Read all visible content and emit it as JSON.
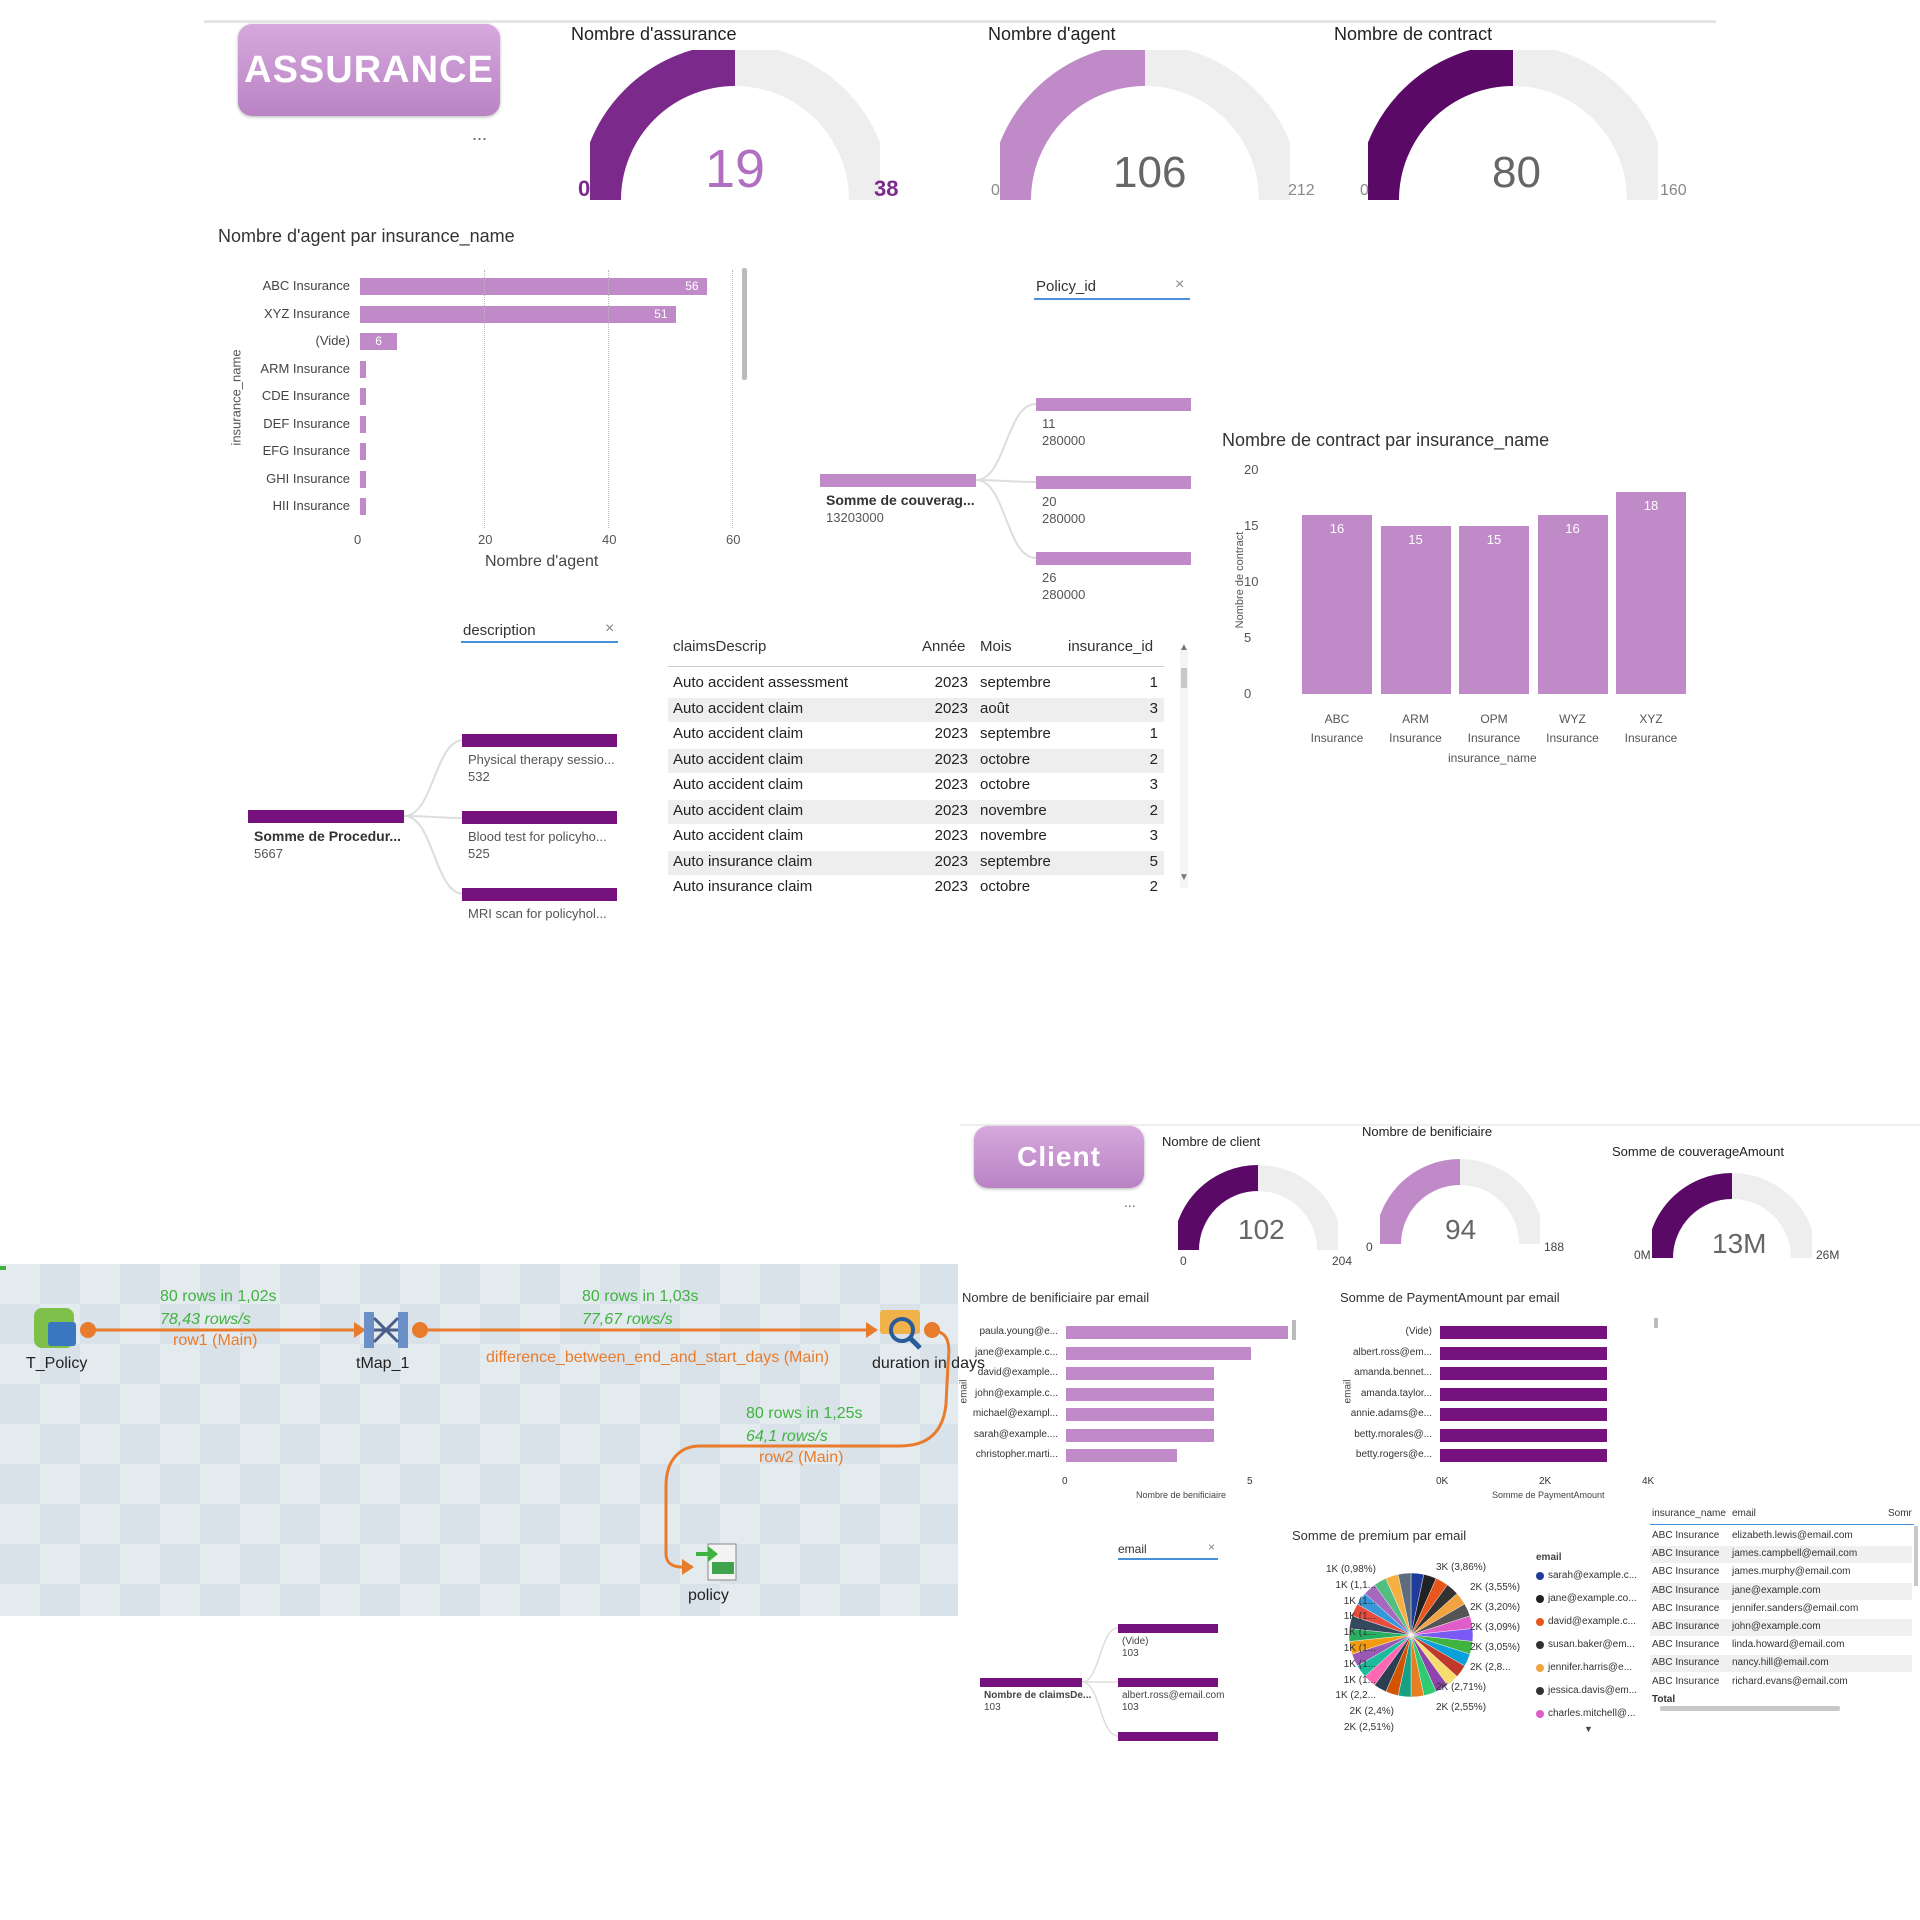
{
  "assurance": {
    "title": "ASSURANCE",
    "more": "...",
    "gauges": [
      {
        "title": "Nombre d'assurance",
        "value": 19,
        "value_label": "19",
        "min": "0",
        "max": "38"
      },
      {
        "title": "Nombre d'agent",
        "value": 106,
        "value_label": "106",
        "min": "0",
        "max": "212"
      },
      {
        "title": "Nombre de contract",
        "value": 80,
        "value_label": "80",
        "min": "0",
        "max": "160"
      }
    ],
    "agent_chart": {
      "title": "Nombre d'agent par insurance_name",
      "ylabel": "insurance_name",
      "xlabel": "Nombre d'agent",
      "ticks": [
        "0",
        "20",
        "40",
        "60"
      ],
      "categories": [
        "ABC Insurance",
        "XYZ Insurance",
        "(Vide)",
        "ARM Insurance",
        "CDE Insurance",
        "DEF Insurance",
        "EFG Insurance",
        "GHI Insurance",
        "HII Insurance"
      ],
      "values": [
        56,
        51,
        6,
        1,
        1,
        1,
        1,
        1,
        1
      ],
      "labels": [
        "56",
        "51",
        "6",
        "",
        "",
        "",
        "",
        "",
        ""
      ]
    },
    "policy_slicer": {
      "label": "Policy_id",
      "close": "×"
    },
    "coverage_tree": {
      "root_label": "Somme de couverag...",
      "root_value": "13203000",
      "nodes": [
        {
          "id": "11",
          "value": "280000"
        },
        {
          "id": "20",
          "value": "280000"
        },
        {
          "id": "26",
          "value": "280000"
        }
      ]
    },
    "contract_chart": {
      "title": "Nombre de contract par insurance_name",
      "ylabel": "Nombre de contract",
      "xlabel": "insurance_name",
      "yticks": [
        "20",
        "15",
        "10",
        "5",
        "0"
      ],
      "categories": [
        [
          "ABC",
          "Insurance"
        ],
        [
          "ARM",
          "Insurance"
        ],
        [
          "OPM",
          "Insurance"
        ],
        [
          "WYZ",
          "Insurance"
        ],
        [
          "XYZ",
          "Insurance"
        ]
      ],
      "values": [
        16,
        15,
        15,
        16,
        18
      ]
    },
    "description_slicer": {
      "label": "description",
      "close": "×"
    },
    "procedure_tree": {
      "root_label": "Somme de Procedur...",
      "root_value": "5667",
      "nodes": [
        {
          "label": "Physical therapy sessio...",
          "value": "532"
        },
        {
          "label": "Blood test for policyho...",
          "value": "525"
        },
        {
          "label": "MRI scan for policyhol...",
          "value": "518"
        }
      ]
    },
    "claims_table": {
      "headers": [
        "claimsDescrip",
        "Année",
        "Mois",
        "insurance_id"
      ],
      "rows": [
        [
          "Auto accident assessment",
          "2023",
          "septembre",
          "1"
        ],
        [
          "Auto accident claim",
          "2023",
          "août",
          "3"
        ],
        [
          "Auto accident claim",
          "2023",
          "septembre",
          "1"
        ],
        [
          "Auto accident claim",
          "2023",
          "octobre",
          "2"
        ],
        [
          "Auto accident claim",
          "2023",
          "octobre",
          "3"
        ],
        [
          "Auto accident claim",
          "2023",
          "novembre",
          "2"
        ],
        [
          "Auto accident claim",
          "2023",
          "novembre",
          "3"
        ],
        [
          "Auto insurance claim",
          "2023",
          "septembre",
          "5"
        ],
        [
          "Auto insurance claim",
          "2023",
          "octobre",
          "2"
        ]
      ]
    }
  },
  "talend": {
    "nodes": {
      "policy_in": "T_Policy",
      "tmap": "tMap_1",
      "duration": "duration in days",
      "policy_out": "policy"
    },
    "flows": [
      {
        "rows": "80 rows in 1,02s",
        "rate": "78,43 rows/s",
        "name": "row1 (Main)"
      },
      {
        "rows": "80 rows in 1,03s",
        "rate": "77,67 rows/s",
        "name": "difference_between_end_and_start_days (Main)"
      },
      {
        "rows": "80 rows in 1,25s",
        "rate": "64,1 rows/s",
        "name": "row2 (Main)"
      }
    ]
  },
  "client": {
    "title": "Client",
    "more": "...",
    "gauges": [
      {
        "title": "Nombre de client",
        "value": 102,
        "value_label": "102",
        "min": "0",
        "max": "204"
      },
      {
        "title": "Nombre de benificiaire",
        "value": 94,
        "value_label": "94",
        "min": "0",
        "max": "188"
      },
      {
        "title": "Somme de couverageAmount",
        "value": 13,
        "value_label": "13M",
        "min": "0M",
        "max": "26M"
      }
    ],
    "benef_chart": {
      "title": "Nombre de benificiaire par email",
      "ylabel": "email",
      "xlabel": "Nombre de benificiaire",
      "ticks": [
        "0",
        "5"
      ],
      "categories": [
        "paula.young@e...",
        "jane@example.c...",
        "david@example...",
        "john@example.c...",
        "michael@exampl...",
        "sarah@example....",
        "christopher.marti..."
      ],
      "values": [
        6,
        5,
        4,
        4,
        4,
        4,
        3
      ]
    },
    "payment_chart": {
      "title": "Somme de PaymentAmount par email",
      "ylabel": "email",
      "xlabel": "Somme de PaymentAmount",
      "ticks": [
        "0K",
        "2K",
        "4K"
      ],
      "categories": [
        "(Vide)",
        "albert.ross@em...",
        "amanda.bennet...",
        "amanda.taylor...",
        "annie.adams@e...",
        "betty.morales@...",
        "betty.rogers@e..."
      ],
      "values": [
        3,
        3,
        3,
        3,
        3,
        3,
        3
      ]
    },
    "email_slicer": {
      "label": "email",
      "close": "×"
    },
    "claims_tree": {
      "root_label": "Nombre de claimsDe...",
      "root_value": "103",
      "nodes": [
        {
          "label": "(Vide)",
          "value": "103"
        },
        {
          "label": "albert.ross@email.com",
          "value": "103"
        }
      ]
    },
    "premium_pie": {
      "title": "Somme de premium par email",
      "legend_title": "email",
      "left_labels": [
        "1K (0,98%)",
        "1K (1,1...",
        "1K (1...",
        "1K (1...",
        "1K (1...",
        "1K (1...",
        "1K (1...",
        "1K (1...",
        "1K (2,2...",
        "2K (2,4%)",
        "2K (2,51%)"
      ],
      "right_labels": [
        "3K (3,86%)",
        "2K (3,55%)",
        "2K (3,20%)",
        "2K (3,09%)",
        "2K (3,05%)",
        "2K (2,8...",
        "2K (2,71%)",
        "2K (2,55%)"
      ],
      "legend": [
        "sarah@example.c...",
        "jane@example.co...",
        "david@example.c...",
        "susan.baker@em...",
        "jennifer.harris@e...",
        "jessica.davis@em...",
        "charles.mitchell@..."
      ],
      "legend_colors": [
        "#1f3b9b",
        "#222222",
        "#e8561b",
        "#333333",
        "#f1a340",
        "#333333",
        "#e05cc8"
      ]
    },
    "email_table": {
      "headers": [
        "insurance_name",
        "email",
        "Somr"
      ],
      "rows": [
        [
          "ABC Insurance",
          "elizabeth.lewis@email.com"
        ],
        [
          "ABC Insurance",
          "james.campbell@email.com"
        ],
        [
          "ABC Insurance",
          "james.murphy@email.com"
        ],
        [
          "ABC Insurance",
          "jane@example.com"
        ],
        [
          "ABC Insurance",
          "jennifer.sanders@email.com"
        ],
        [
          "ABC Insurance",
          "john@example.com"
        ],
        [
          "ABC Insurance",
          "linda.howard@email.com"
        ],
        [
          "ABC Insurance",
          "nancy.hill@email.com"
        ],
        [
          "ABC Insurance",
          "richard.evans@email.com"
        ]
      ],
      "total": "Total"
    }
  }
}
